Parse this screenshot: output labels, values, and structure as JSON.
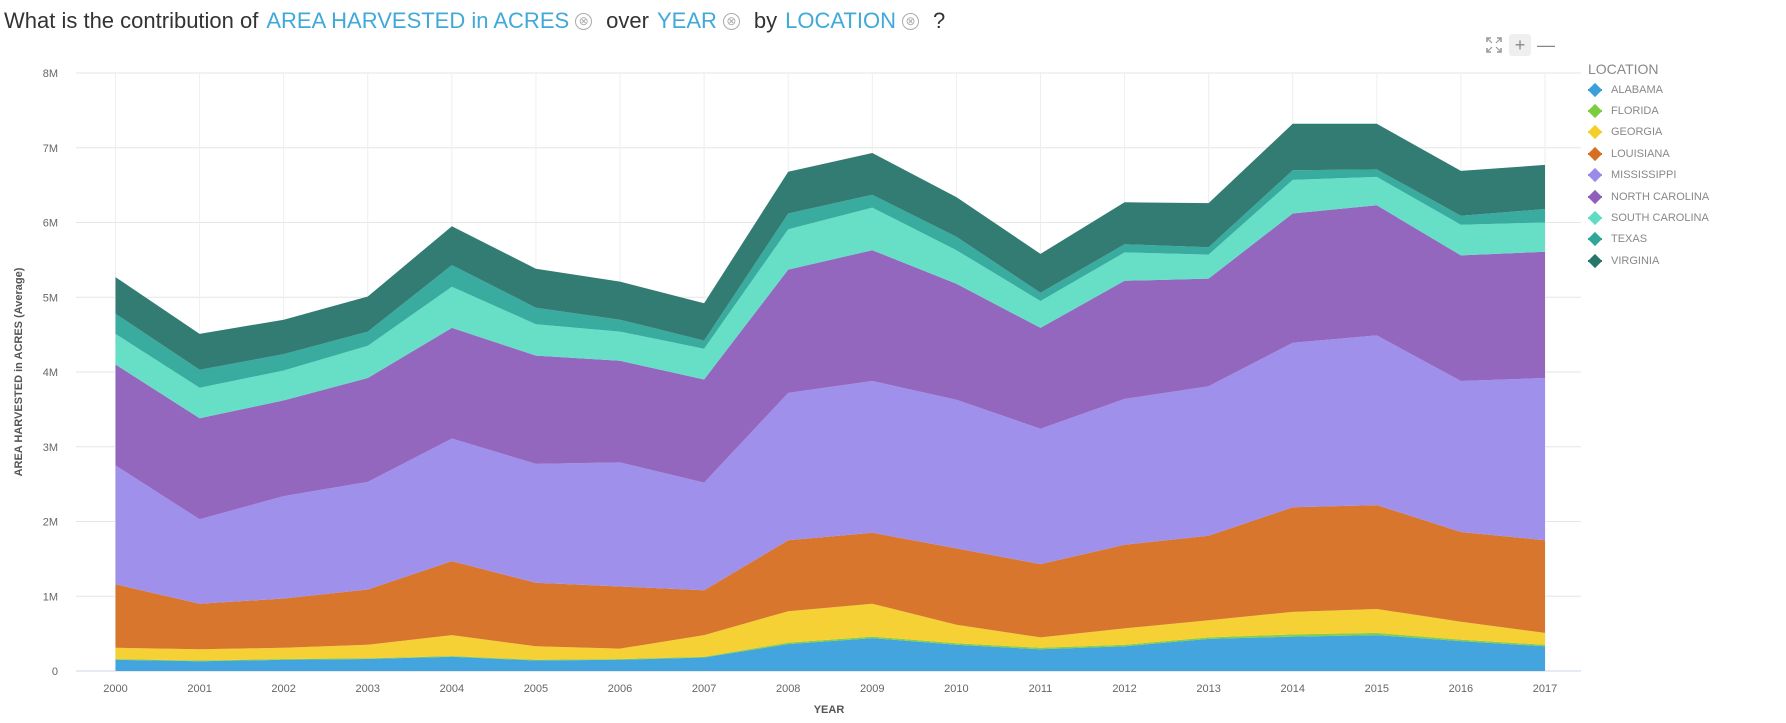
{
  "query": {
    "prefix": "What is the contribution of",
    "measure": "AREA HARVESTED in ACRES",
    "over_word": "over",
    "dimension": "YEAR",
    "by_word": "by",
    "group": "LOCATION",
    "suffix": "?",
    "clear_glyph": "⊗"
  },
  "toolbar": {
    "expand_icon": "expand-icon",
    "zoom_in_glyph": "+",
    "zoom_out_glyph": "—"
  },
  "legend": {
    "title": "LOCATION",
    "items": [
      {
        "label": "ALABAMA",
        "color": "#3a9fdb"
      },
      {
        "label": "FLORIDA",
        "color": "#7ccc3f"
      },
      {
        "label": "GEORGIA",
        "color": "#f4cf2a"
      },
      {
        "label": "LOUISIANA",
        "color": "#d76f22"
      },
      {
        "label": "MISSISSIPPI",
        "color": "#9a8aeb"
      },
      {
        "label": "NORTH CAROLINA",
        "color": "#8e5fbb"
      },
      {
        "label": "SOUTH CAROLINA",
        "color": "#5fdcc3"
      },
      {
        "label": "TEXAS",
        "color": "#2ea79a"
      },
      {
        "label": "VIRGINIA",
        "color": "#27756b"
      }
    ]
  },
  "chart_data": {
    "type": "area",
    "stacked": true,
    "xlabel": "YEAR",
    "ylabel": "AREA HARVESTED in ACRES (Average)",
    "ylim": [
      0,
      8000000
    ],
    "yticks": [
      0,
      1000000,
      2000000,
      3000000,
      4000000,
      5000000,
      6000000,
      7000000,
      8000000
    ],
    "ytick_labels": [
      "0",
      "1M",
      "2M",
      "3M",
      "4M",
      "5M",
      "6M",
      "7M",
      "8M"
    ],
    "grid": true,
    "legend_position": "right",
    "categories": [
      "2000",
      "2001",
      "2002",
      "2003",
      "2004",
      "2005",
      "2006",
      "2007",
      "2008",
      "2009",
      "2010",
      "2011",
      "2012",
      "2013",
      "2014",
      "2015",
      "2016",
      "2017"
    ],
    "series": [
      {
        "name": "ALABAMA",
        "values": [
          150000,
          130000,
          150000,
          160000,
          190000,
          140000,
          150000,
          180000,
          360000,
          440000,
          350000,
          290000,
          330000,
          430000,
          460000,
          480000,
          400000,
          330000
        ]
      },
      {
        "name": "FLORIDA",
        "values": [
          10000,
          10000,
          10000,
          10000,
          10000,
          10000,
          10000,
          10000,
          20000,
          20000,
          20000,
          20000,
          20000,
          20000,
          30000,
          30000,
          20000,
          20000
        ]
      },
      {
        "name": "GEORGIA",
        "values": [
          150000,
          150000,
          150000,
          180000,
          280000,
          180000,
          140000,
          290000,
          420000,
          440000,
          250000,
          140000,
          220000,
          230000,
          300000,
          320000,
          240000,
          160000
        ]
      },
      {
        "name": "LOUISIANA",
        "values": [
          850000,
          610000,
          660000,
          740000,
          990000,
          850000,
          830000,
          600000,
          950000,
          950000,
          1020000,
          980000,
          1120000,
          1130000,
          1400000,
          1390000,
          1200000,
          1240000
        ]
      },
      {
        "name": "MISSISSIPPI",
        "values": [
          1590000,
          1130000,
          1370000,
          1440000,
          1640000,
          1590000,
          1660000,
          1440000,
          1970000,
          2030000,
          1990000,
          1810000,
          1950000,
          2000000,
          2200000,
          2270000,
          2020000,
          2170000
        ]
      },
      {
        "name": "NORTH CAROLINA",
        "values": [
          1350000,
          1350000,
          1280000,
          1390000,
          1480000,
          1450000,
          1360000,
          1380000,
          1650000,
          1750000,
          1550000,
          1350000,
          1580000,
          1440000,
          1730000,
          1740000,
          1680000,
          1690000
        ]
      },
      {
        "name": "SOUTH CAROLINA",
        "values": [
          410000,
          410000,
          400000,
          430000,
          550000,
          420000,
          390000,
          410000,
          540000,
          570000,
          450000,
          360000,
          380000,
          320000,
          450000,
          380000,
          410000,
          390000
        ]
      },
      {
        "name": "TEXAS",
        "values": [
          270000,
          240000,
          220000,
          190000,
          290000,
          220000,
          160000,
          110000,
          210000,
          170000,
          180000,
          110000,
          110000,
          100000,
          130000,
          100000,
          120000,
          180000
        ]
      },
      {
        "name": "VIRGINIA",
        "values": [
          490000,
          480000,
          460000,
          470000,
          520000,
          520000,
          510000,
          500000,
          560000,
          560000,
          530000,
          520000,
          560000,
          590000,
          620000,
          610000,
          600000,
          590000
        ]
      }
    ]
  }
}
